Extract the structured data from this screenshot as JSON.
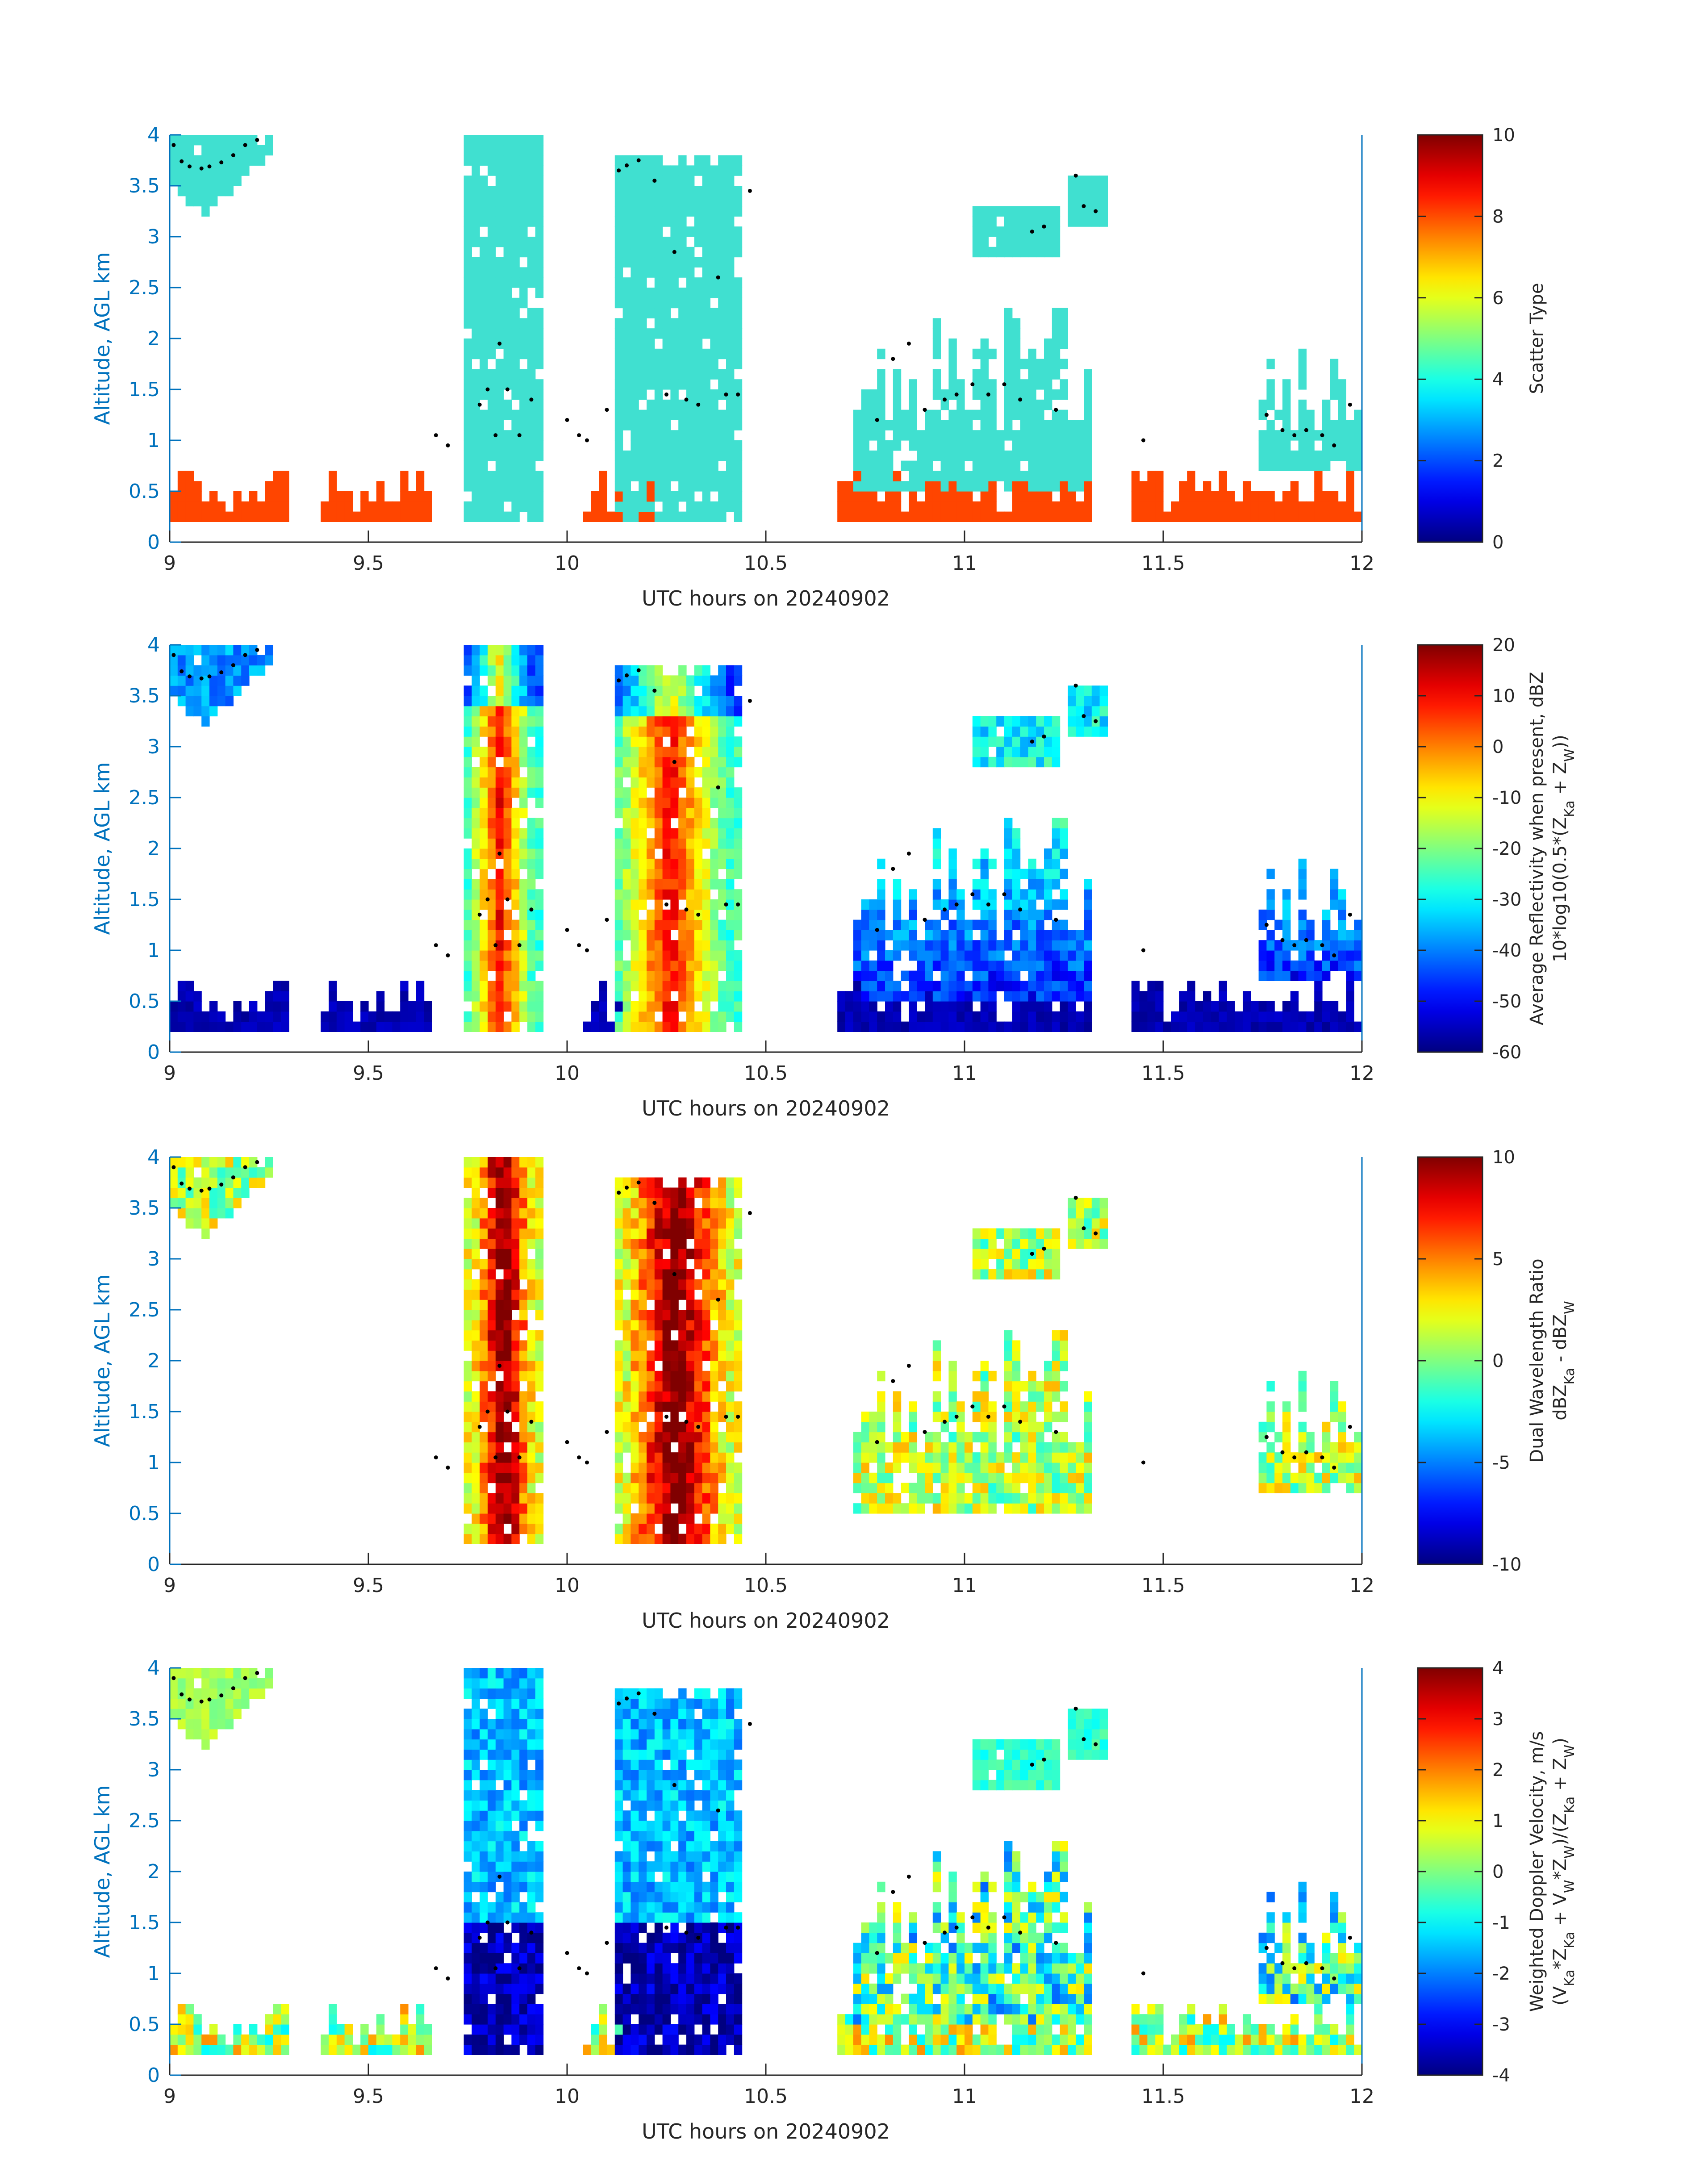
{
  "figure": {
    "date_label": "20240902"
  },
  "colors": {
    "axis_blue": "#0072BD",
    "text_black": "#262626",
    "cloud_cyan": "#40E0D0",
    "insect_orange": "#FF4500"
  },
  "chart_data": [
    {
      "type": "heatmap",
      "xlabel": "UTC hours on 20240902",
      "ylabel": "Altitude, AGL km",
      "xlim": [
        9,
        12
      ],
      "ylim": [
        0,
        4
      ],
      "xticks": [
        "9",
        "9.5",
        "10",
        "10.5",
        "11",
        "11.5",
        "12"
      ],
      "yticks": [
        "0",
        "0.5",
        "1",
        "1.5",
        "2",
        "2.5",
        "3",
        "3.5",
        "4"
      ],
      "colorbar": {
        "label_lines": [
          "Scatter Type"
        ],
        "range": [
          0,
          10
        ],
        "ticks": [
          "0",
          "2",
          "4",
          "6",
          "8",
          "10"
        ],
        "colormap": "jet"
      },
      "mode": "scatter_type",
      "observed_categories": [
        {
          "value": 3.6,
          "color": "#40E0D0"
        },
        {
          "value": 8.6,
          "color": "#FF4500"
        }
      ]
    },
    {
      "type": "heatmap",
      "xlabel": "UTC hours on 20240902",
      "ylabel": "Altitude, AGL km",
      "xlim": [
        9,
        12
      ],
      "ylim": [
        0,
        4
      ],
      "xticks": [
        "9",
        "9.5",
        "10",
        "10.5",
        "11",
        "11.5",
        "12"
      ],
      "yticks": [
        "0",
        "0.5",
        "1",
        "1.5",
        "2",
        "2.5",
        "3",
        "3.5",
        "4"
      ],
      "colorbar": {
        "label_lines": [
          "Average Reflectivity when present, dBZ",
          "10*log10(0.5*(Z<sub>Ka</sub> + Z<sub>W</sub>))"
        ],
        "range": [
          -60,
          20
        ],
        "ticks": [
          "-60",
          "-50",
          "-40",
          "-30",
          "-20",
          "-10",
          "0",
          "10",
          "20"
        ],
        "colormap": "jet"
      },
      "mode": "reflectivity"
    },
    {
      "type": "heatmap",
      "xlabel": "UTC hours on 20240902",
      "ylabel": "Altitude, AGL km",
      "xlim": [
        9,
        12
      ],
      "ylim": [
        0,
        4
      ],
      "xticks": [
        "9",
        "9.5",
        "10",
        "10.5",
        "11",
        "11.5",
        "12"
      ],
      "yticks": [
        "0",
        "0.5",
        "1",
        "1.5",
        "2",
        "2.5",
        "3",
        "3.5",
        "4"
      ],
      "colorbar": {
        "label_lines": [
          "Dual Wavelength Ratio",
          "dBZ<sub>Ka</sub> - dBZ<sub>W</sub>"
        ],
        "range": [
          -10,
          10
        ],
        "ticks": [
          "-10",
          "-5",
          "0",
          "5",
          "10"
        ],
        "colormap": "jet"
      },
      "mode": "dwr"
    },
    {
      "type": "heatmap",
      "xlabel": "UTC hours on 20240902",
      "ylabel": "Altitude, AGL km",
      "xlim": [
        9,
        12
      ],
      "ylim": [
        0,
        4
      ],
      "xticks": [
        "9",
        "9.5",
        "10",
        "10.5",
        "11",
        "11.5",
        "12"
      ],
      "yticks": [
        "0",
        "0.5",
        "1",
        "1.5",
        "2",
        "2.5",
        "3",
        "3.5",
        "4"
      ],
      "colorbar": {
        "label_lines": [
          "Weighted Doppler Velocity, m/s",
          "(V<sub>Ka</sub>*Z<sub>Ka</sub> + V<sub>W</sub>*Z<sub>W</sub>)/(Z<sub>Ka</sub> + Z<sub>W</sub>)"
        ],
        "range": [
          -4,
          4
        ],
        "ticks": [
          "-4",
          "-3",
          "-2",
          "-1",
          "0",
          "1",
          "2",
          "3",
          "4"
        ],
        "colormap": "jet"
      },
      "mode": "velocity"
    }
  ],
  "cloud_regions": [
    {
      "x": [
        9.0,
        9.25
      ],
      "y": [
        3.2,
        4.0
      ],
      "kind": "cirrus"
    },
    {
      "x": [
        9.75,
        9.93
      ],
      "y": [
        0.2,
        4.0
      ],
      "kind": "deep"
    },
    {
      "x": [
        10.12,
        10.43
      ],
      "y": [
        0.2,
        3.8
      ],
      "kind": "deep"
    },
    {
      "x": [
        10.72,
        11.32
      ],
      "y": [
        0.5,
        2.3
      ],
      "kind": "mid"
    },
    {
      "x": [
        11.03,
        11.24
      ],
      "y": [
        2.8,
        3.25
      ],
      "kind": "small"
    },
    {
      "x": [
        11.27,
        11.35
      ],
      "y": [
        3.1,
        3.6
      ],
      "kind": "small"
    },
    {
      "x": [
        11.74,
        12.0
      ],
      "y": [
        0.7,
        2.0
      ],
      "kind": "mid"
    }
  ],
  "insect_layer": {
    "y_range": [
      0.2,
      0.75
    ],
    "x_segments": [
      [
        9.0,
        9.3
      ],
      [
        9.38,
        9.65
      ],
      [
        10.05,
        10.22
      ],
      [
        10.68,
        11.32
      ],
      [
        11.42,
        12.0
      ]
    ]
  },
  "cloud_base_points": [
    [
      9.01,
      3.9
    ],
    [
      9.03,
      3.74
    ],
    [
      9.05,
      3.69
    ],
    [
      9.08,
      3.67
    ],
    [
      9.1,
      3.69
    ],
    [
      9.13,
      3.73
    ],
    [
      9.16,
      3.8
    ],
    [
      9.19,
      3.9
    ],
    [
      9.22,
      3.95
    ],
    [
      9.67,
      1.05
    ],
    [
      9.7,
      0.95
    ],
    [
      9.78,
      1.35
    ],
    [
      9.8,
      1.5
    ],
    [
      9.82,
      1.05
    ],
    [
      9.83,
      1.95
    ],
    [
      9.85,
      1.5
    ],
    [
      9.88,
      1.05
    ],
    [
      9.91,
      1.4
    ],
    [
      10.0,
      1.2
    ],
    [
      10.03,
      1.05
    ],
    [
      10.05,
      1.0
    ],
    [
      10.1,
      1.3
    ],
    [
      10.13,
      3.65
    ],
    [
      10.15,
      3.7
    ],
    [
      10.18,
      3.75
    ],
    [
      10.22,
      3.55
    ],
    [
      10.25,
      1.45
    ],
    [
      10.27,
      2.85
    ],
    [
      10.3,
      1.4
    ],
    [
      10.33,
      1.35
    ],
    [
      10.38,
      2.6
    ],
    [
      10.4,
      1.45
    ],
    [
      10.43,
      1.45
    ],
    [
      10.46,
      3.45
    ],
    [
      10.78,
      1.2
    ],
    [
      10.82,
      1.8
    ],
    [
      10.86,
      1.95
    ],
    [
      10.9,
      1.3
    ],
    [
      10.95,
      1.4
    ],
    [
      10.98,
      1.45
    ],
    [
      11.02,
      1.55
    ],
    [
      11.06,
      1.45
    ],
    [
      11.1,
      1.55
    ],
    [
      11.14,
      1.4
    ],
    [
      11.17,
      3.05
    ],
    [
      11.2,
      3.1
    ],
    [
      11.23,
      1.3
    ],
    [
      11.28,
      3.6
    ],
    [
      11.3,
      3.3
    ],
    [
      11.33,
      3.25
    ],
    [
      11.45,
      1.0
    ],
    [
      11.76,
      1.25
    ],
    [
      11.8,
      1.1
    ],
    [
      11.83,
      1.05
    ],
    [
      11.86,
      1.1
    ],
    [
      11.9,
      1.05
    ],
    [
      11.93,
      0.95
    ],
    [
      11.97,
      1.35
    ]
  ]
}
